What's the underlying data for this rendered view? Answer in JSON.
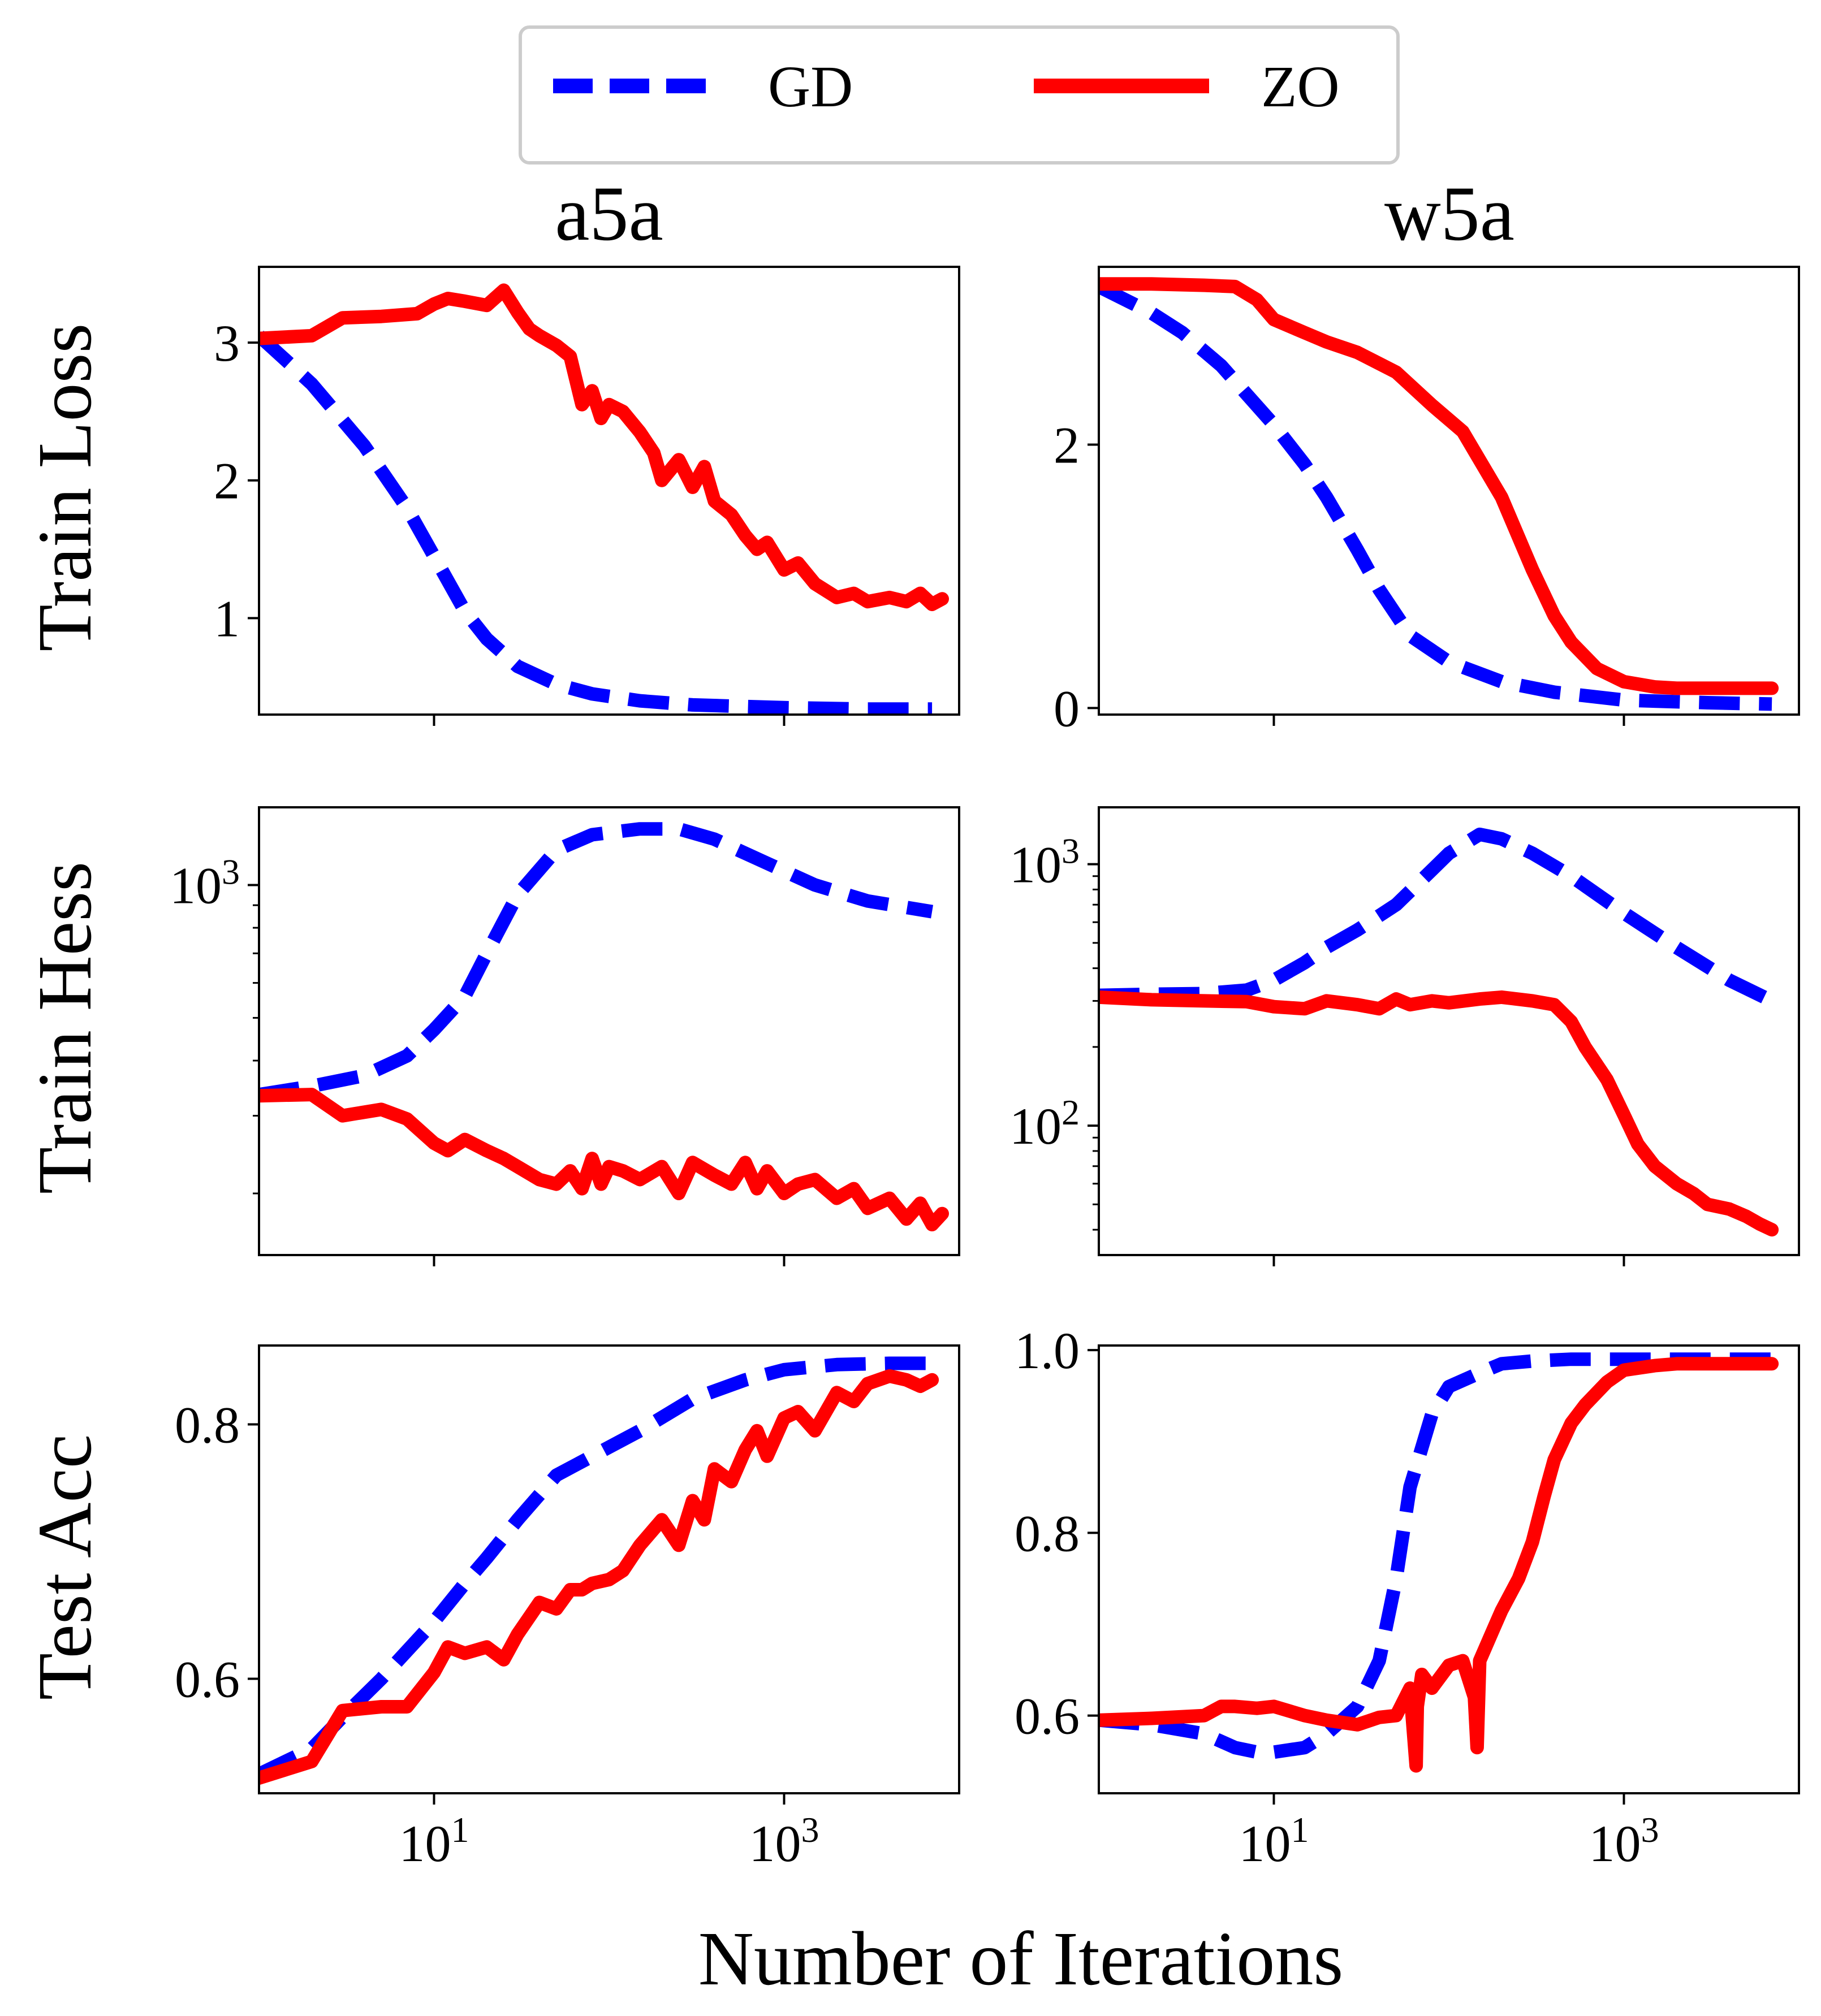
{
  "legend": {
    "entries": [
      {
        "label": "GD",
        "color": "#0000ff",
        "style": "dashed"
      },
      {
        "label": "ZO",
        "color": "#ff0000",
        "style": "solid"
      }
    ],
    "placement": "top-center"
  },
  "columns": [
    "a5a",
    "w5a"
  ],
  "rows": [
    "Train Loss",
    "Train Hess",
    "Test Acc"
  ],
  "xlabel": "Number of Iterations",
  "colors": {
    "gd": "#0000ff",
    "zo": "#ff0000"
  },
  "chart_data": [
    {
      "id": "a5a-train-loss",
      "type": "line",
      "title": "a5a",
      "ylabel": "Train Loss",
      "xscale": "log",
      "yscale": "linear",
      "xlim": [
        1,
        10000
      ],
      "ylim": [
        0.3,
        3.55
      ],
      "xticks": [
        10,
        1000
      ],
      "xtick_labels": [
        "",
        ""
      ],
      "yticks": [
        1,
        2,
        3
      ],
      "ytick_labels": [
        "1",
        "2",
        "3"
      ],
      "series": [
        {
          "name": "GD",
          "style": "dashed",
          "x": [
            1,
            2,
            4,
            7,
            10,
            15,
            20,
            30,
            50,
            80,
            150,
            300,
            1000,
            3000,
            7000
          ],
          "values": [
            3.05,
            2.7,
            2.25,
            1.8,
            1.45,
            1.05,
            0.85,
            0.65,
            0.52,
            0.45,
            0.4,
            0.37,
            0.35,
            0.34,
            0.34
          ]
        },
        {
          "name": "ZO",
          "style": "solid",
          "x": [
            1,
            2,
            3,
            5,
            8,
            10,
            12,
            15,
            20,
            25,
            30,
            35,
            40,
            50,
            60,
            70,
            80,
            90,
            100,
            120,
            150,
            180,
            200,
            250,
            300,
            350,
            400,
            500,
            600,
            700,
            800,
            1000,
            1200,
            1500,
            2000,
            2500,
            3000,
            4000,
            5000,
            6000,
            7000,
            8000
          ],
          "values": [
            3.03,
            3.05,
            3.18,
            3.19,
            3.21,
            3.28,
            3.32,
            3.3,
            3.27,
            3.38,
            3.22,
            3.1,
            3.05,
            2.98,
            2.9,
            2.55,
            2.65,
            2.45,
            2.55,
            2.5,
            2.35,
            2.2,
            2.0,
            2.15,
            1.95,
            2.1,
            1.85,
            1.75,
            1.6,
            1.5,
            1.55,
            1.35,
            1.4,
            1.25,
            1.15,
            1.18,
            1.12,
            1.15,
            1.12,
            1.18,
            1.1,
            1.14
          ]
        }
      ]
    },
    {
      "id": "w5a-train-loss",
      "type": "line",
      "title": "w5a",
      "ylabel": "",
      "xscale": "log",
      "yscale": "linear",
      "xlim": [
        1,
        10000
      ],
      "ylim": [
        -0.05,
        3.35
      ],
      "xticks": [
        10,
        1000
      ],
      "xtick_labels": [
        "",
        ""
      ],
      "yticks": [
        0,
        2
      ],
      "ytick_labels": [
        "0",
        "2"
      ],
      "series": [
        {
          "name": "GD",
          "style": "dashed",
          "x": [
            1,
            2,
            3,
            5,
            10,
            15,
            20,
            30,
            40,
            60,
            100,
            200,
            400,
            1000,
            3000,
            7000
          ],
          "values": [
            3.2,
            3.0,
            2.85,
            2.6,
            2.15,
            1.85,
            1.6,
            1.2,
            0.9,
            0.55,
            0.35,
            0.2,
            0.12,
            0.06,
            0.04,
            0.03
          ]
        },
        {
          "name": "ZO",
          "style": "solid",
          "x": [
            1,
            2,
            4,
            6,
            8,
            10,
            15,
            20,
            30,
            50,
            80,
            120,
            200,
            300,
            400,
            500,
            700,
            1000,
            1500,
            2000,
            3000,
            5000,
            7000
          ],
          "values": [
            3.22,
            3.22,
            3.21,
            3.2,
            3.1,
            2.95,
            2.85,
            2.78,
            2.7,
            2.55,
            2.3,
            2.1,
            1.6,
            1.05,
            0.7,
            0.5,
            0.3,
            0.2,
            0.16,
            0.15,
            0.15,
            0.15,
            0.15
          ]
        }
      ]
    },
    {
      "id": "a5a-train-hess",
      "type": "line",
      "title": "",
      "ylabel": "Train Hess",
      "xscale": "log",
      "yscale": "log",
      "xlim": [
        1,
        10000
      ],
      "ylim": [
        145,
        1500
      ],
      "xticks": [
        10,
        1000
      ],
      "xtick_labels": [
        "",
        ""
      ],
      "yticks": [
        1000
      ],
      "ytick_labels": [
        "10³"
      ],
      "series": [
        {
          "name": "GD",
          "style": "dashed",
          "x": [
            1,
            2,
            4,
            7,
            10,
            15,
            20,
            30,
            50,
            80,
            150,
            250,
            400,
            800,
            1500,
            3000,
            7000
          ],
          "values": [
            335,
            350,
            370,
            410,
            470,
            560,
            700,
            950,
            1200,
            1300,
            1340,
            1340,
            1270,
            1120,
            1000,
            920,
            870
          ]
        },
        {
          "name": "ZO",
          "style": "solid",
          "x": [
            1,
            2,
            3,
            5,
            7,
            10,
            12,
            15,
            20,
            25,
            30,
            40,
            50,
            60,
            70,
            80,
            90,
            100,
            120,
            150,
            200,
            250,
            300,
            400,
            500,
            600,
            700,
            800,
            1000,
            1200,
            1500,
            2000,
            2500,
            3000,
            4000,
            5000,
            6000,
            7000,
            8000
          ],
          "values": [
            333,
            335,
            300,
            310,
            295,
            260,
            250,
            265,
            250,
            240,
            230,
            215,
            210,
            225,
            205,
            240,
            210,
            230,
            225,
            215,
            230,
            200,
            235,
            220,
            210,
            235,
            205,
            225,
            200,
            210,
            215,
            195,
            205,
            185,
            195,
            175,
            190,
            170,
            180
          ]
        }
      ]
    },
    {
      "id": "w5a-train-hess",
      "type": "line",
      "title": "",
      "ylabel": "",
      "xscale": "log",
      "yscale": "log",
      "xlim": [
        1,
        10000
      ],
      "ylim": [
        32,
        1650
      ],
      "xticks": [
        10,
        1000
      ],
      "xtick_labels": [
        "",
        ""
      ],
      "yticks": [
        100,
        1000
      ],
      "ytick_labels": [
        "10²",
        "10³"
      ],
      "series": [
        {
          "name": "GD",
          "style": "dashed",
          "x": [
            1,
            2,
            4,
            7,
            10,
            15,
            20,
            30,
            50,
            80,
            100,
            150,
            200,
            300,
            500,
            1000,
            2000,
            4000,
            7000
          ],
          "values": [
            315,
            318,
            320,
            330,
            360,
            420,
            480,
            560,
            700,
            950,
            1100,
            1300,
            1250,
            1100,
            900,
            650,
            480,
            360,
            300
          ]
        },
        {
          "name": "ZO",
          "style": "solid",
          "x": [
            1,
            2,
            4,
            7,
            10,
            15,
            20,
            30,
            40,
            50,
            60,
            80,
            100,
            150,
            200,
            300,
            400,
            500,
            600,
            800,
            1000,
            1200,
            1500,
            2000,
            2500,
            3000,
            4000,
            5000,
            6000,
            7000
          ],
          "values": [
            310,
            303,
            300,
            298,
            285,
            280,
            300,
            290,
            280,
            305,
            290,
            300,
            295,
            305,
            310,
            300,
            290,
            250,
            200,
            150,
            110,
            85,
            70,
            60,
            55,
            50,
            48,
            45,
            42,
            40
          ]
        }
      ]
    },
    {
      "id": "a5a-test-acc",
      "type": "line",
      "title": "",
      "ylabel": "Test Acc",
      "xscale": "log",
      "yscale": "linear",
      "xlim": [
        1,
        10000
      ],
      "ylim": [
        0.51,
        0.862
      ],
      "xticks": [
        10,
        1000
      ],
      "xtick_labels": [
        "10¹",
        "10³"
      ],
      "yticks": [
        0.6,
        0.8
      ],
      "ytick_labels": [
        "0.6",
        "0.8"
      ],
      "series": [
        {
          "name": "GD",
          "style": "dashed",
          "x": [
            1,
            2,
            3,
            5,
            10,
            15,
            20,
            30,
            50,
            80,
            150,
            300,
            600,
            1000,
            2000,
            4000,
            7000
          ],
          "values": [
            0.525,
            0.545,
            0.57,
            0.6,
            0.645,
            0.675,
            0.695,
            0.725,
            0.76,
            0.775,
            0.795,
            0.82,
            0.835,
            0.843,
            0.847,
            0.848,
            0.848
          ]
        },
        {
          "name": "ZO",
          "style": "solid",
          "x": [
            1,
            2,
            3,
            5,
            7,
            10,
            12,
            15,
            20,
            25,
            30,
            40,
            50,
            60,
            70,
            80,
            100,
            120,
            150,
            200,
            250,
            300,
            350,
            400,
            500,
            600,
            700,
            800,
            1000,
            1200,
            1500,
            2000,
            2500,
            3000,
            4000,
            5000,
            6000,
            7000
          ],
          "values": [
            0.522,
            0.535,
            0.575,
            0.578,
            0.578,
            0.605,
            0.625,
            0.62,
            0.625,
            0.615,
            0.635,
            0.66,
            0.655,
            0.67,
            0.67,
            0.675,
            0.678,
            0.685,
            0.705,
            0.725,
            0.705,
            0.74,
            0.725,
            0.765,
            0.755,
            0.78,
            0.795,
            0.775,
            0.805,
            0.81,
            0.795,
            0.825,
            0.818,
            0.832,
            0.838,
            0.835,
            0.83,
            0.835
          ]
        }
      ]
    },
    {
      "id": "w5a-test-acc",
      "type": "line",
      "title": "",
      "ylabel": "",
      "xscale": "log",
      "yscale": "linear",
      "xlim": [
        1,
        10000
      ],
      "ylim": [
        0.515,
        1.005
      ],
      "xticks": [
        10,
        1000
      ],
      "xtick_labels": [
        "10¹",
        "10³"
      ],
      "yticks": [
        0.6,
        0.8,
        1.0
      ],
      "ytick_labels": [
        "0.6",
        "0.8",
        "1.0"
      ],
      "series": [
        {
          "name": "GD",
          "style": "dashed",
          "x": [
            1,
            2,
            4,
            6,
            8,
            10,
            15,
            20,
            30,
            40,
            50,
            60,
            80,
            100,
            150,
            200,
            300,
            500,
            1000,
            3000,
            7000
          ],
          "values": [
            0.595,
            0.59,
            0.58,
            0.565,
            0.56,
            0.56,
            0.565,
            0.58,
            0.61,
            0.66,
            0.75,
            0.85,
            0.93,
            0.96,
            0.975,
            0.985,
            0.988,
            0.99,
            0.99,
            0.99,
            0.99
          ]
        },
        {
          "name": "ZO",
          "style": "solid",
          "x": [
            1,
            2,
            4,
            5,
            6,
            8,
            10,
            15,
            20,
            30,
            40,
            50,
            60,
            65,
            66,
            70,
            80,
            100,
            120,
            140,
            145,
            150,
            180,
            200,
            250,
            300,
            350,
            400,
            500,
            600,
            800,
            1000,
            1500,
            2000,
            3000,
            5000,
            7000
          ],
          "values": [
            0.595,
            0.597,
            0.6,
            0.61,
            0.61,
            0.608,
            0.61,
            0.6,
            0.595,
            0.59,
            0.598,
            0.6,
            0.63,
            0.545,
            0.61,
            0.645,
            0.63,
            0.655,
            0.66,
            0.62,
            0.565,
            0.66,
            0.695,
            0.715,
            0.75,
            0.79,
            0.84,
            0.88,
            0.92,
            0.94,
            0.965,
            0.978,
            0.983,
            0.985,
            0.985,
            0.985,
            0.985
          ]
        }
      ]
    }
  ]
}
